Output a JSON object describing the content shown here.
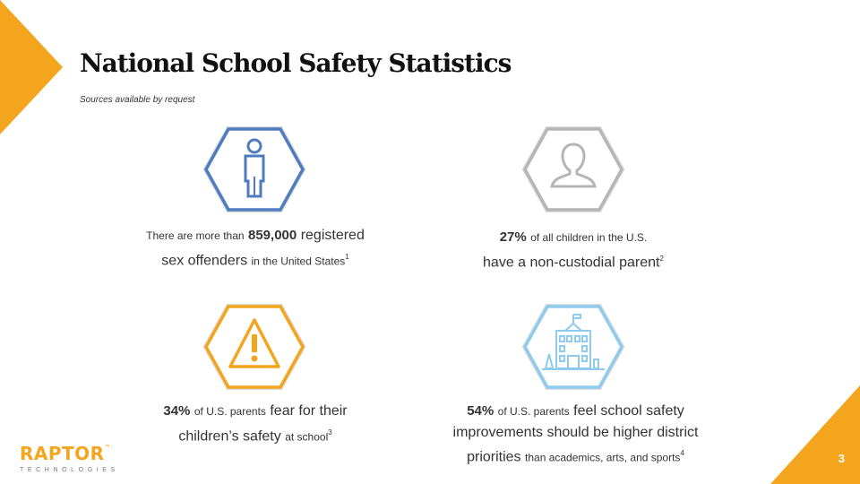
{
  "title": "National School Safety Statistics",
  "subtitle": "Sources available by request",
  "page_number": "3",
  "logo": {
    "name": "RAPTOR",
    "tagline": "TECHNOLOGIES",
    "mark": "™"
  },
  "colors": {
    "accent": "#f3a51e",
    "blue": "#4f7bbf",
    "gray": "#b6b6b6",
    "light_blue": "#8ecbef"
  },
  "stats": [
    {
      "icon": "person-icon",
      "line1_prefix": "There are more than",
      "number": "859,000",
      "line1_suffix": "registered",
      "line2_main": "sex offenders",
      "line2_small": "in the United States",
      "footnote": "1"
    },
    {
      "icon": "user-silhouette-icon",
      "number": "27%",
      "line1_small": "of all children in the U.S.",
      "line2_main": "have a non-custodial parent",
      "footnote": "2"
    },
    {
      "icon": "warning-icon",
      "number": "34%",
      "line1_small": "of U.S. parents",
      "line1_main": "fear for their",
      "line2_main": "children’s safety",
      "line2_small": "at school",
      "footnote": "3"
    },
    {
      "icon": "school-building-icon",
      "number": "54%",
      "line1_small": "of U.S. parents",
      "line1_main": "feel school safety",
      "line2_main": "improvements should be higher district",
      "line3_main": "priorities",
      "line3_small": "than academics, arts, and sports",
      "footnote": "4"
    }
  ]
}
